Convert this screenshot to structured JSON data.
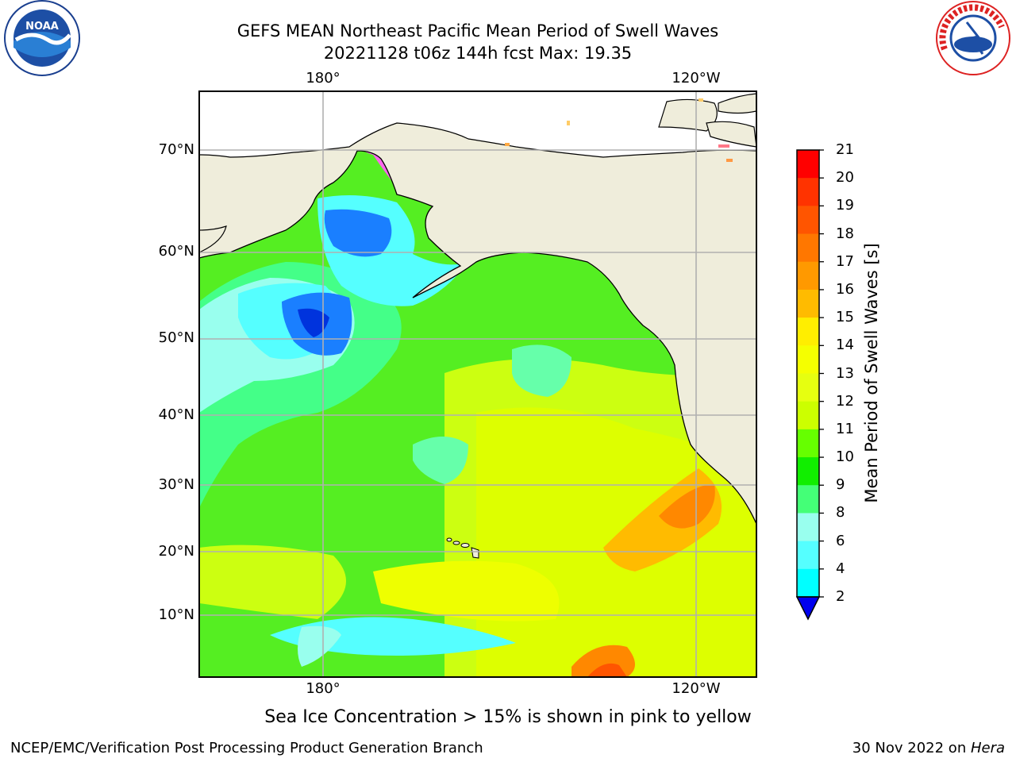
{
  "header": {
    "title_line1": "GEFS MEAN Northeast Pacific Mean Period of Swell Waves",
    "title_line2": "20221128 t06z 144h fcst   Max: 19.35"
  },
  "logos": {
    "left": "NOAA",
    "right": "NATIONAL WEATHER SERVICE"
  },
  "map": {
    "lon_labels_top": [
      "180°",
      "120°W"
    ],
    "lon_labels_bottom": [
      "180°",
      "120°W"
    ],
    "lat_labels": [
      "70°N",
      "60°N",
      "50°N",
      "40°N",
      "30°N",
      "20°N",
      "10°N"
    ],
    "gridlines": true,
    "land_color": "#efeddb",
    "ocean_dominant_color": "#55ee22"
  },
  "colorbar": {
    "label": "Mean Period of Swell Waves [s]",
    "tick_labels": [
      "21",
      "20",
      "19",
      "18",
      "17",
      "16",
      "15",
      "14",
      "13",
      "12",
      "11",
      "10",
      "9",
      "8",
      "6",
      "4",
      "2"
    ],
    "colors": [
      "#ff0000",
      "#ff3300",
      "#ff5500",
      "#ff7700",
      "#ff9900",
      "#ffbb00",
      "#ffee00",
      "#f5ff00",
      "#e6ff10",
      "#ccff00",
      "#66ff00",
      "#11ee00",
      "#44ff77",
      "#99ffee",
      "#55ffff",
      "#00ffff",
      "#00dfff",
      "#0077ff"
    ],
    "extend_color": "#0000ee"
  },
  "footer": {
    "note": "Sea Ice Concentration > 15% is shown in pink to yellow",
    "credit_left": "NCEP/EMC/Verification Post Processing Product Generation Branch",
    "date_text": "30 Nov 2022 on ",
    "host": "Hera"
  }
}
